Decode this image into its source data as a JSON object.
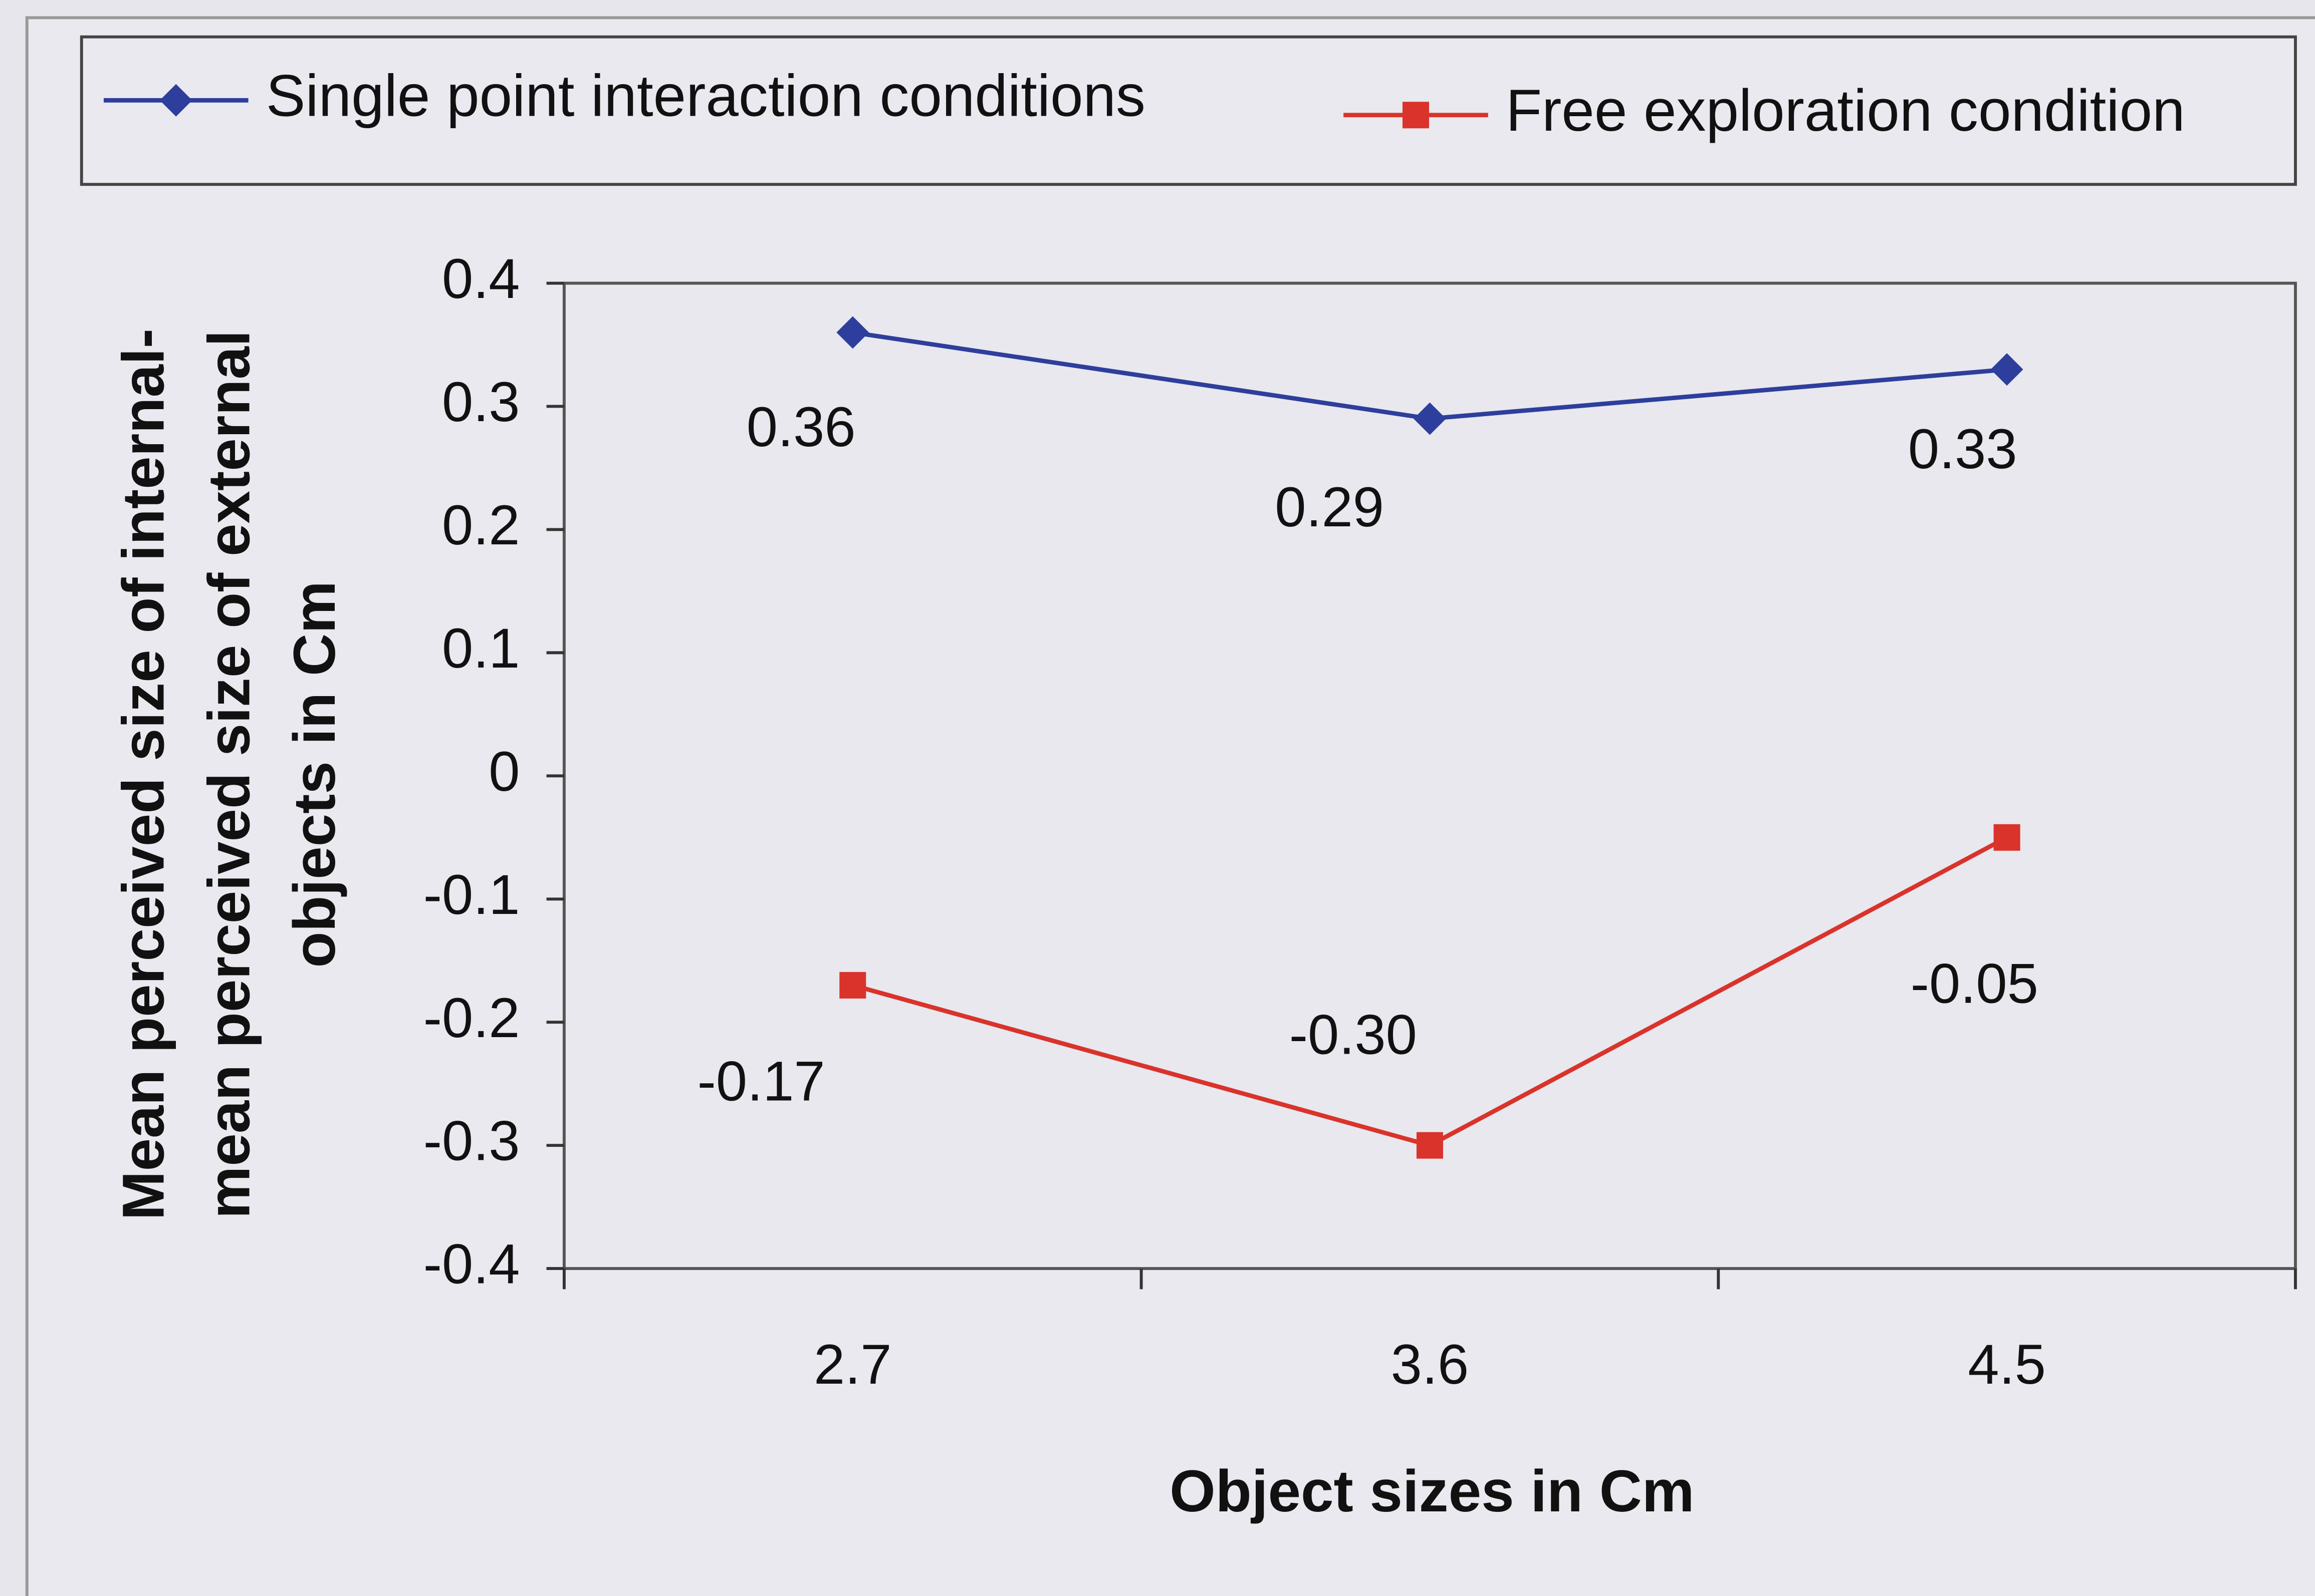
{
  "chart_data": {
    "type": "line",
    "categories": [
      "2.7",
      "3.6",
      "4.5"
    ],
    "series": [
      {
        "name": "Single point interaction conditions",
        "color": "#2e3e9c",
        "marker": "diamond",
        "values": [
          0.36,
          0.29,
          0.33
        ]
      },
      {
        "name": "Free exploration condition",
        "color": "#d9332b",
        "marker": "square",
        "values": [
          -0.17,
          -0.3,
          -0.05
        ],
        "value_labels": [
          "-0.17",
          "-0.30",
          "-0.05"
        ]
      }
    ],
    "ylim": [
      -0.4,
      0.4
    ],
    "yticks": [
      0.4,
      0.3,
      0.2,
      0.1,
      0,
      -0.1,
      -0.2,
      -0.3,
      -0.4
    ],
    "xlabel": "Object sizes in Cm",
    "ylabel": [
      "Mean perceived size of internal-",
      "mean perceived size of external",
      "objects in Cm"
    ],
    "legend": "top",
    "grid": false
  }
}
